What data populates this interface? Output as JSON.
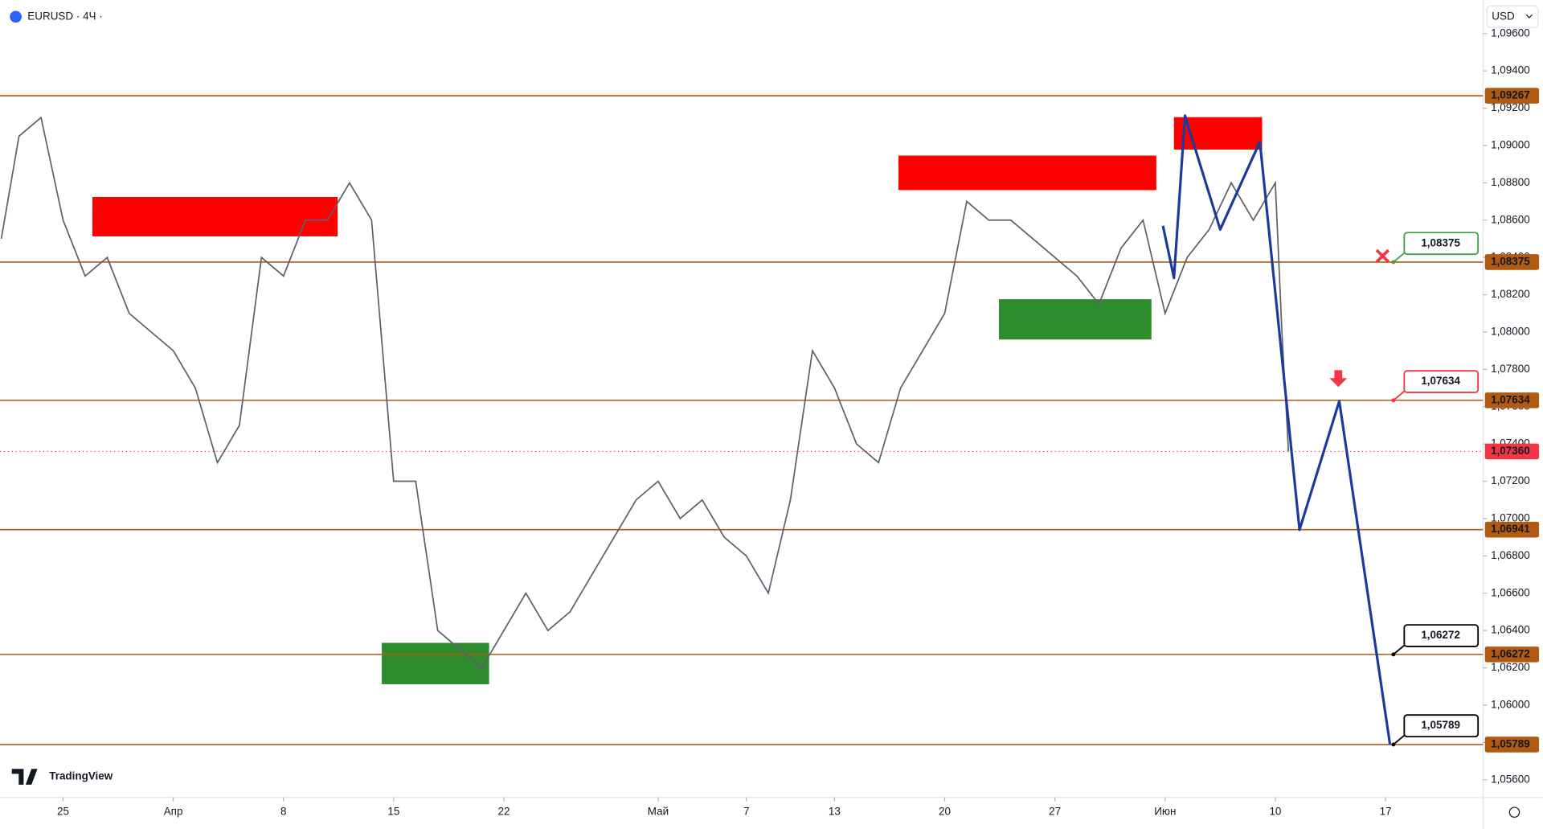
{
  "header": {
    "symbol": "EURUSD · 4Ч ·",
    "currency": "USD",
    "brand": "TradingView"
  },
  "chart_data": {
    "type": "line",
    "xlim": [
      -2.86,
      64.42
    ],
    "ylim": [
      1.05505,
      1.0978
    ],
    "xticks": [
      {
        "value": 0,
        "label": "25"
      },
      {
        "value": 5,
        "label": "Апр"
      },
      {
        "value": 10,
        "label": "8"
      },
      {
        "value": 15,
        "label": "15"
      },
      {
        "value": 20,
        "label": "22"
      },
      {
        "value": 27,
        "label": "Май"
      },
      {
        "value": 31,
        "label": "7"
      },
      {
        "value": 35,
        "label": "13"
      },
      {
        "value": 40,
        "label": "20"
      },
      {
        "value": 45,
        "label": "27"
      },
      {
        "value": 50,
        "label": "Июн"
      },
      {
        "value": 55,
        "label": "10"
      },
      {
        "value": 60,
        "label": "17"
      }
    ],
    "yticks": [
      {
        "value": 1.056,
        "label": "1,05600"
      },
      {
        "value": 1.058,
        "label": "1,05800"
      },
      {
        "value": 1.06,
        "label": "1,06000"
      },
      {
        "value": 1.062,
        "label": "1,06200"
      },
      {
        "value": 1.064,
        "label": "1,06400"
      },
      {
        "value": 1.066,
        "label": "1,06600"
      },
      {
        "value": 1.068,
        "label": "1,06800"
      },
      {
        "value": 1.07,
        "label": "1,07000"
      },
      {
        "value": 1.072,
        "label": "1,07200"
      },
      {
        "value": 1.074,
        "label": "1,07400"
      },
      {
        "value": 1.076,
        "label": "1,07600"
      },
      {
        "value": 1.078,
        "label": "1,07800"
      },
      {
        "value": 1.08,
        "label": "1,08000"
      },
      {
        "value": 1.082,
        "label": "1,08200"
      },
      {
        "value": 1.084,
        "label": "1,08400"
      },
      {
        "value": 1.086,
        "label": "1,08600"
      },
      {
        "value": 1.088,
        "label": "1,08800"
      },
      {
        "value": 1.09,
        "label": "1,09000"
      },
      {
        "value": 1.092,
        "label": "1,09200"
      },
      {
        "value": 1.094,
        "label": "1,09400"
      },
      {
        "value": 1.096,
        "label": "1,09600"
      }
    ],
    "x": [
      -2.8,
      -2,
      -1,
      0,
      1,
      2,
      3,
      4,
      5,
      6,
      7,
      8,
      9,
      10,
      11,
      12,
      13,
      14,
      15,
      16,
      17,
      18,
      19,
      20,
      21,
      22,
      23,
      24,
      25,
      26,
      27,
      28,
      29,
      30,
      31,
      32,
      33,
      34,
      35,
      36,
      37,
      38,
      39,
      40,
      41,
      42,
      43,
      44,
      45,
      46,
      47,
      48,
      49,
      50,
      51,
      52,
      53,
      54,
      55,
      55.3,
      55.6
    ],
    "series": [
      {
        "color": "#5d606b",
        "values": [
          1.085,
          1.0905,
          1.0915,
          1.086,
          1.083,
          1.084,
          1.081,
          1.08,
          1.079,
          1.077,
          1.073,
          1.075,
          1.084,
          1.083,
          1.086,
          1.086,
          1.088,
          1.086,
          1.072,
          1.072,
          1.064,
          1.063,
          1.062,
          1.064,
          1.066,
          1.064,
          1.065,
          1.067,
          1.069,
          1.071,
          1.072,
          1.07,
          1.071,
          1.069,
          1.068,
          1.066,
          1.071,
          1.079,
          1.077,
          1.074,
          1.073,
          1.077,
          1.079,
          1.081,
          1.087,
          1.086,
          1.086,
          1.085,
          1.084,
          1.083,
          1.0815,
          1.0845,
          1.086,
          1.081,
          1.084,
          1.0855,
          1.088,
          1.086,
          1.088,
          1.08,
          1.0736
        ]
      }
    ],
    "projection": {
      "color": "#1c3a9e",
      "x": [
        49.9,
        50.4,
        50.9,
        52.5,
        54.3,
        56.1,
        57.9,
        60.2
      ],
      "values": [
        1.0857,
        1.0829,
        1.0916,
        1.0855,
        1.0902,
        1.0694,
        1.0763,
        1.0579
      ]
    },
    "zones": [
      {
        "color": "#ff0000",
        "x": [
          1.33,
          12.46
        ],
        "y": [
          1.08513,
          1.08724
        ]
      },
      {
        "color": "#ff0000",
        "x": [
          37.9,
          49.6
        ],
        "y": [
          1.08761,
          1.08946
        ]
      },
      {
        "color": "#ff0000",
        "x": [
          50.4,
          54.4
        ],
        "y": [
          1.08978,
          1.09152
        ]
      },
      {
        "color": "#2e8b2e",
        "x": [
          14.46,
          19.33
        ],
        "y": [
          1.06112,
          1.06334
        ]
      },
      {
        "color": "#2e8b2e",
        "x": [
          42.46,
          49.38
        ],
        "y": [
          1.0796,
          1.08176
        ]
      }
    ],
    "levels": [
      {
        "value": 1.09267,
        "label": "1,09267"
      },
      {
        "value": 1.08375,
        "label": "1,08375"
      },
      {
        "value": 1.07634,
        "label": "1,07634"
      },
      {
        "value": 1.06941,
        "label": "1,06941"
      },
      {
        "value": 1.06272,
        "label": "1,06272"
      },
      {
        "value": 1.05789,
        "label": "1,05789"
      }
    ],
    "level_color": "#b05a12",
    "last_price": {
      "value": 1.0736,
      "label": "1,07360",
      "color": "#f23645"
    },
    "callouts": [
      {
        "value": 1.08375,
        "label": "1,08375",
        "color": "#43a047"
      },
      {
        "value": 1.07634,
        "label": "1,07634",
        "color": "#f23645"
      },
      {
        "value": 1.06272,
        "label": "1,06272",
        "color": "#000000"
      },
      {
        "value": 1.05789,
        "label": "1,05789",
        "color": "#000000"
      }
    ]
  }
}
